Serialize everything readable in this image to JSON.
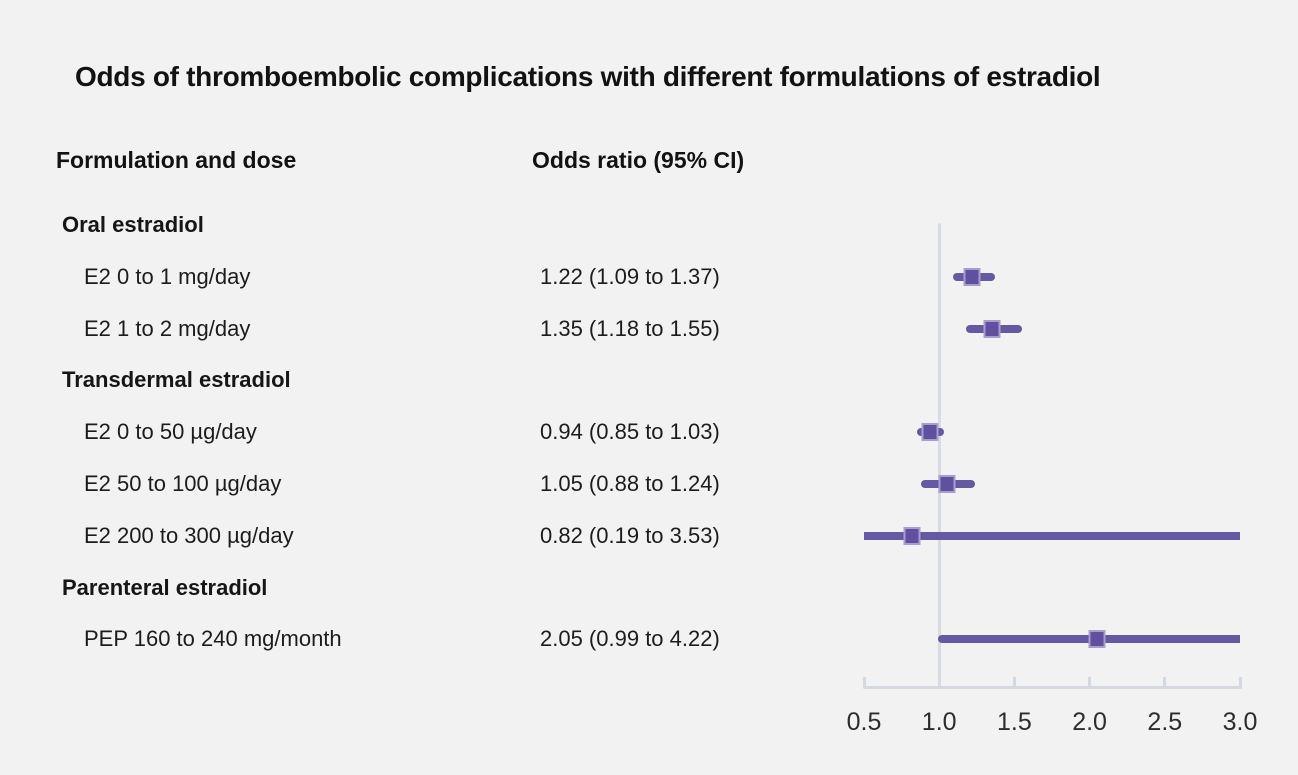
{
  "title": "Odds of thromboembolic complications with different formulations of estradiol",
  "columns": {
    "formulation": "Formulation and dose",
    "odds_ratio": "Odds ratio (95% CI)"
  },
  "colors": {
    "background": "#f2f2f2",
    "accent_purple": "#6659a3",
    "marker_purple": "#61509f",
    "marker_border": "#a89dce",
    "axis_gray": "#d4d9e1",
    "reference_line_gray": "#d7dbe3",
    "text": "#121212"
  },
  "chart_data": {
    "type": "forest",
    "title": "Odds of thromboembolic complications with different formulations of estradiol",
    "xlabel": "",
    "ylabel": "",
    "legend": null,
    "grid": false,
    "axis": {
      "min": 0.5,
      "max": 3.0,
      "ticks": [
        "0.5",
        "1.0",
        "1.5",
        "2.0",
        "2.5",
        "3.0"
      ],
      "reference_line": 1.0
    },
    "rows": [
      {
        "label": "Oral estradiol",
        "group": true
      },
      {
        "label": "E2 0 to 1 mg/day",
        "value_text": "1.22 (1.09 to 1.37)",
        "est": 1.22,
        "lo": 1.09,
        "hi": 1.37
      },
      {
        "label": "E2 1 to 2 mg/day",
        "value_text": "1.35 (1.18 to 1.55)",
        "est": 1.35,
        "lo": 1.18,
        "hi": 1.55
      },
      {
        "label": "Transdermal estradiol",
        "group": true
      },
      {
        "label": "E2 0 to 50 µg/day",
        "value_text": "0.94 (0.85 to 1.03)",
        "est": 0.94,
        "lo": 0.85,
        "hi": 1.03
      },
      {
        "label": "E2 50 to 100 µg/day",
        "value_text": "1.05 (0.88 to 1.24)",
        "est": 1.05,
        "lo": 0.88,
        "hi": 1.24
      },
      {
        "label": "E2 200 to 300 µg/day",
        "value_text": "0.82 (0.19 to 3.53)",
        "est": 0.82,
        "lo": 0.19,
        "hi": 3.53
      },
      {
        "label": "Parenteral estradiol",
        "group": true
      },
      {
        "label": "PEP 160 to 240 mg/month",
        "value_text": "2.05 (0.99 to 4.22)",
        "est": 2.05,
        "lo": 0.99,
        "hi": 4.22
      }
    ]
  }
}
